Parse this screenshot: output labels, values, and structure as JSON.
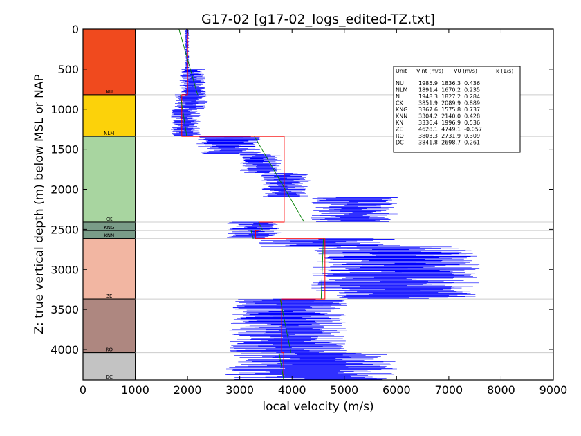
{
  "chart_data": {
    "type": "line",
    "title": "G17-02 [g17-02_logs_edited-TZ.txt]",
    "xlabel": "local velocity (m/s)",
    "ylabel": "Z: true vertical depth (m) below MSL or NAP",
    "xlim": [
      0,
      9000
    ],
    "ylim": [
      4380,
      0
    ],
    "x_ticks": [
      0,
      1000,
      2000,
      3000,
      4000,
      5000,
      6000,
      7000,
      8000,
      9000
    ],
    "y_ticks": [
      0,
      500,
      1000,
      1500,
      2000,
      2500,
      3000,
      3500,
      4000
    ],
    "grid": false,
    "legend_position": "top-right",
    "colors": {
      "log": "#0000ff",
      "interval_velocity": "#ff0000",
      "linear_trend": "#008000",
      "unit_boundary": "#cccccc"
    },
    "lithology_column": {
      "x_range": [
        0,
        1000
      ],
      "units": [
        {
          "name": "NU",
          "top": 0,
          "bottom": 820,
          "color": "#f04a1e"
        },
        {
          "name": "NLM",
          "top": 820,
          "bottom": 1340,
          "color": "#fcd20a"
        },
        {
          "name": "CK",
          "top": 1340,
          "bottom": 2410,
          "color": "#a8d5a0"
        },
        {
          "name": "KNG",
          "top": 2410,
          "bottom": 2515,
          "color": "#7a9c88"
        },
        {
          "name": "KNN",
          "top": 2515,
          "bottom": 2615,
          "color": "#7a9c88"
        },
        {
          "name": "ZE",
          "top": 2615,
          "bottom": 3370,
          "color": "#f2b6a2"
        },
        {
          "name": "RO",
          "top": 3370,
          "bottom": 4040,
          "color": "#ae8780"
        },
        {
          "name": "DC",
          "top": 4040,
          "bottom": 4380,
          "color": "#c3c3c3"
        }
      ]
    },
    "legend": {
      "header": [
        "Unit",
        "Vint (m/s)",
        "V0 (m/s)",
        "k (1/s)"
      ],
      "rows": [
        [
          "NU",
          "1985.9",
          "1836.3",
          "0.436"
        ],
        [
          "NLM",
          "1891.4",
          "1670.2",
          "0.235"
        ],
        [
          "N",
          "1948.3",
          "1827.2",
          "0.284"
        ],
        [
          "CK",
          "3851.9",
          "2089.9",
          "0.889"
        ],
        [
          "KNG",
          "3367.6",
          "1575.8",
          "0.737"
        ],
        [
          "KNN",
          "3304.2",
          "2140.0",
          "0.428"
        ],
        [
          "KN",
          "3336.4",
          "1996.9",
          "0.536"
        ],
        [
          "ZE",
          "4628.1",
          "4749.1",
          "-0.057"
        ],
        [
          "RO",
          "3803.3",
          "2731.9",
          "0.309"
        ],
        [
          "DC",
          "3841.8",
          "2698.7",
          "0.261"
        ]
      ]
    },
    "series": [
      {
        "type": "step",
        "points": [
          [
            2000,
            0
          ],
          [
            2000,
            820
          ],
          [
            1890,
            820
          ],
          [
            1890,
            1340
          ],
          [
            3850,
            1340
          ],
          [
            3850,
            2410
          ],
          [
            3370,
            2410
          ],
          [
            3370,
            2515
          ],
          [
            3300,
            2515
          ],
          [
            3300,
            2615
          ],
          [
            4630,
            2615
          ],
          [
            4630,
            3370
          ],
          [
            3800,
            3370
          ],
          [
            3800,
            4040
          ],
          [
            3840,
            4040
          ],
          [
            3840,
            4380
          ]
        ]
      },
      {
        "type": "trend",
        "segments": [
          [
            [
              1836,
              0
            ],
            [
              2193,
              820
            ]
          ],
          [
            [
              1863,
              820
            ],
            [
              1985,
              1340
            ]
          ],
          [
            [
              3280,
              1340
            ],
            [
              4232,
              2410
            ]
          ],
          [
            [
              3360,
              2410
            ],
            [
              3438,
              2515
            ]
          ],
          [
            [
              3216,
              2515
            ],
            [
              3259,
              2615
            ]
          ],
          [
            [
              4600,
              2615
            ],
            [
              4557,
              3370
            ]
          ],
          [
            [
              3773,
              3370
            ],
            [
              3980,
              4040
            ]
          ],
          [
            [
              3753,
              4040
            ],
            [
              3842,
              4380
            ]
          ]
        ]
      },
      {
        "type": "log-bands",
        "bands": [
          {
            "top": 0,
            "bottom": 500,
            "min": 1950,
            "max": 2030
          },
          {
            "top": 500,
            "bottom": 820,
            "min": 1850,
            "max": 2350
          },
          {
            "top": 820,
            "bottom": 1000,
            "min": 1750,
            "max": 2400
          },
          {
            "top": 1000,
            "bottom": 1340,
            "min": 1680,
            "max": 2250
          },
          {
            "top": 1340,
            "bottom": 1560,
            "min": 2150,
            "max": 3450
          },
          {
            "top": 1560,
            "bottom": 1800,
            "min": 3000,
            "max": 3800
          },
          {
            "top": 1800,
            "bottom": 2100,
            "min": 3400,
            "max": 4350
          },
          {
            "top": 2100,
            "bottom": 2410,
            "min": 4350,
            "max": 6050
          },
          {
            "top": 2410,
            "bottom": 2615,
            "min": 2750,
            "max": 3800
          },
          {
            "top": 2615,
            "bottom": 2720,
            "min": 3300,
            "max": 6100
          },
          {
            "top": 2720,
            "bottom": 3370,
            "min": 4350,
            "max": 7600
          },
          {
            "top": 3370,
            "bottom": 4040,
            "min": 2800,
            "max": 5050
          },
          {
            "top": 4040,
            "bottom": 4380,
            "min": 2700,
            "max": 6050
          }
        ]
      }
    ]
  }
}
